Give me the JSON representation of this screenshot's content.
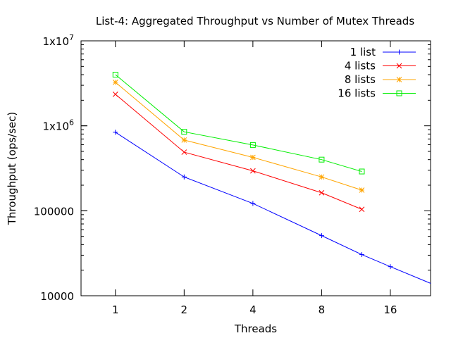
{
  "chart_data": {
    "type": "line",
    "title": "List-4: Aggregated Throughput vs Number of Mutex Threads",
    "xlabel": "Threads",
    "ylabel": "Throughput (ops/sec)",
    "x_scale": "log2",
    "y_scale": "log10",
    "xlim": [
      0.707,
      24
    ],
    "ylim": [
      10000,
      10000000
    ],
    "x_ticks": [
      {
        "value": 1,
        "label": "1"
      },
      {
        "value": 2,
        "label": "2"
      },
      {
        "value": 4,
        "label": "4"
      },
      {
        "value": 8,
        "label": "8"
      },
      {
        "value": 16,
        "label": "16"
      }
    ],
    "y_ticks": [
      {
        "value": 10000,
        "base": "10000",
        "exp": ""
      },
      {
        "value": 100000,
        "base": "100000",
        "exp": ""
      },
      {
        "value": 1000000,
        "base": "1x10",
        "exp": "6"
      },
      {
        "value": 10000000,
        "base": "1x10",
        "exp": "7"
      }
    ],
    "legend_position": "top-right",
    "grid": false,
    "series": [
      {
        "name": "1 list",
        "color": "#0000ff",
        "marker": "plus",
        "x": [
          1,
          2,
          4,
          8,
          12,
          16,
          24
        ],
        "y": [
          840000,
          250000,
          122000,
          51000,
          30500,
          22000,
          14000
        ]
      },
      {
        "name": "4 lists",
        "color": "#ff0000",
        "marker": "cross",
        "x": [
          1,
          2,
          4,
          8,
          12
        ],
        "y": [
          2350000,
          490000,
          295000,
          163000,
          104000
        ]
      },
      {
        "name": "8 lists",
        "color": "#ffa500",
        "marker": "star",
        "x": [
          1,
          2,
          4,
          8,
          12
        ],
        "y": [
          3250000,
          680000,
          425000,
          250000,
          175000
        ]
      },
      {
        "name": "16 lists",
        "color": "#00ee00",
        "marker": "square",
        "x": [
          1,
          2,
          4,
          8,
          12
        ],
        "y": [
          4000000,
          850000,
          595000,
          400000,
          290000
        ]
      }
    ]
  }
}
